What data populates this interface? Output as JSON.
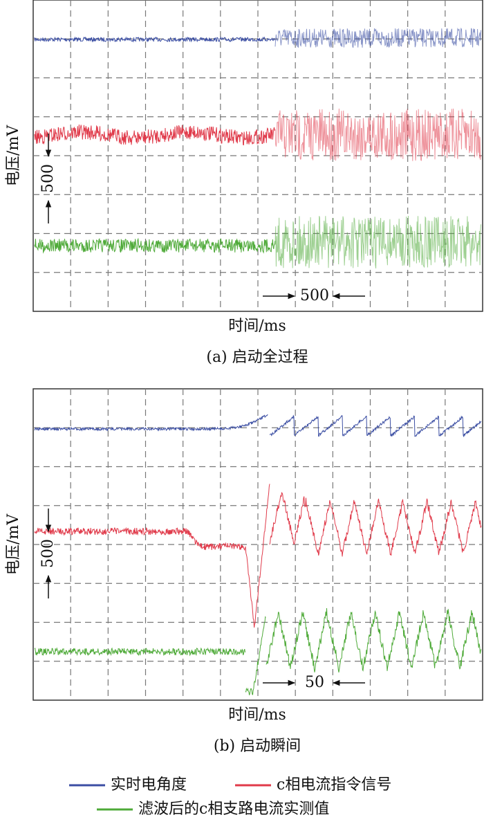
{
  "panels": [
    {
      "y_label": "电压/mV",
      "x_label": "时间/ms",
      "caption": "(a) 启动全过程",
      "vertical_scale": "500",
      "horizontal_scale": "500"
    },
    {
      "y_label": "电压/mV",
      "x_label": "时间/ms",
      "caption": "(b) 启动瞬间",
      "vertical_scale": "500",
      "horizontal_scale": "50"
    }
  ],
  "legend": [
    {
      "name": "实时电角度",
      "color": "#3b4ea3"
    },
    {
      "name": "c相电流指令信号",
      "color": "#e03a4a"
    },
    {
      "name": "滤波后的c相支路电流实测值",
      "color": "#4eaa38"
    }
  ]
}
